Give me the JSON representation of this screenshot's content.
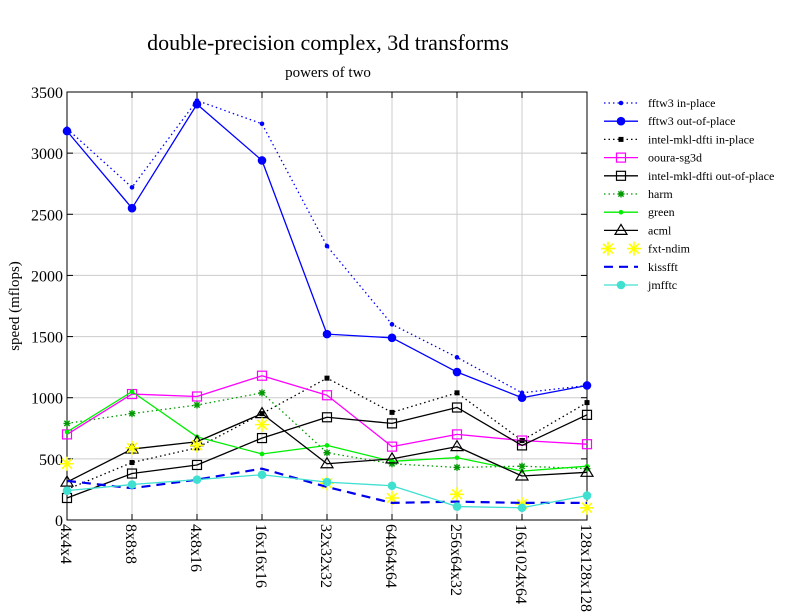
{
  "chart_data": {
    "type": "line",
    "title": "double-precision complex, 3d transforms",
    "subtitle": "powers of two",
    "xlabel": "",
    "ylabel": "speed (mflops)",
    "ylim": [
      0,
      3500
    ],
    "yticks": [
      0,
      500,
      1000,
      1500,
      2000,
      2500,
      3000,
      3500
    ],
    "grid": true,
    "legend_position": "right",
    "categories": [
      "4x4x4",
      "8x8x8",
      "4x8x16",
      "16x16x16",
      "32x32x32",
      "64x64x64",
      "256x64x32",
      "16x1024x64",
      "128x128x128"
    ],
    "series": [
      {
        "name": "fftw3 in-place",
        "color": "#0000ff",
        "dash": "dot",
        "marker": "dot",
        "values": [
          3200,
          2720,
          3430,
          3240,
          2240,
          1600,
          1330,
          1040,
          1100
        ]
      },
      {
        "name": "fftw3 out-of-place",
        "color": "#0000ff",
        "dash": "solid",
        "marker": "filled-circle",
        "values": [
          3180,
          2550,
          3400,
          2940,
          1520,
          1490,
          1210,
          1000,
          1100
        ]
      },
      {
        "name": "intel-mkl-dfti in-place",
        "color": "#000000",
        "dash": "dot",
        "marker": "filled-square",
        "values": [
          250,
          470,
          590,
          870,
          1160,
          880,
          1040,
          650,
          960
        ]
      },
      {
        "name": "ooura-sg3d",
        "color": "#ff00ff",
        "dash": "solid",
        "marker": "open-square",
        "values": [
          700,
          1030,
          1010,
          1180,
          1020,
          600,
          700,
          650,
          620
        ]
      },
      {
        "name": "intel-mkl-dfti out-of-place",
        "color": "#000000",
        "dash": "solid",
        "marker": "open-square",
        "values": [
          180,
          380,
          450,
          670,
          840,
          790,
          920,
          610,
          860
        ]
      },
      {
        "name": "harm",
        "color": "#009900",
        "dash": "dot",
        "marker": "star",
        "values": [
          790,
          870,
          940,
          1040,
          550,
          460,
          430,
          440,
          420
        ]
      },
      {
        "name": "green",
        "color": "#00ee00",
        "dash": "solid",
        "marker": "dot",
        "values": [
          720,
          1050,
          680,
          540,
          610,
          480,
          510,
          400,
          440
        ]
      },
      {
        "name": "acml",
        "color": "#000000",
        "dash": "solid",
        "marker": "open-triangle",
        "values": [
          310,
          580,
          640,
          870,
          460,
          500,
          600,
          360,
          390
        ]
      },
      {
        "name": "fxt-ndim",
        "color": "#ffff00",
        "dash": "none",
        "marker": "asterisk",
        "values": [
          460,
          590,
          610,
          780,
          300,
          180,
          210,
          130,
          100
        ]
      },
      {
        "name": "kissfft",
        "color": "#0000ee",
        "dash": "dash",
        "marker": "none",
        "values": [
          320,
          260,
          330,
          420,
          270,
          140,
          150,
          140,
          140
        ]
      },
      {
        "name": "jmfftc",
        "color": "#40e0d0",
        "dash": "solid",
        "marker": "filled-circle",
        "values": [
          240,
          290,
          330,
          370,
          310,
          280,
          110,
          100,
          200
        ]
      }
    ]
  }
}
